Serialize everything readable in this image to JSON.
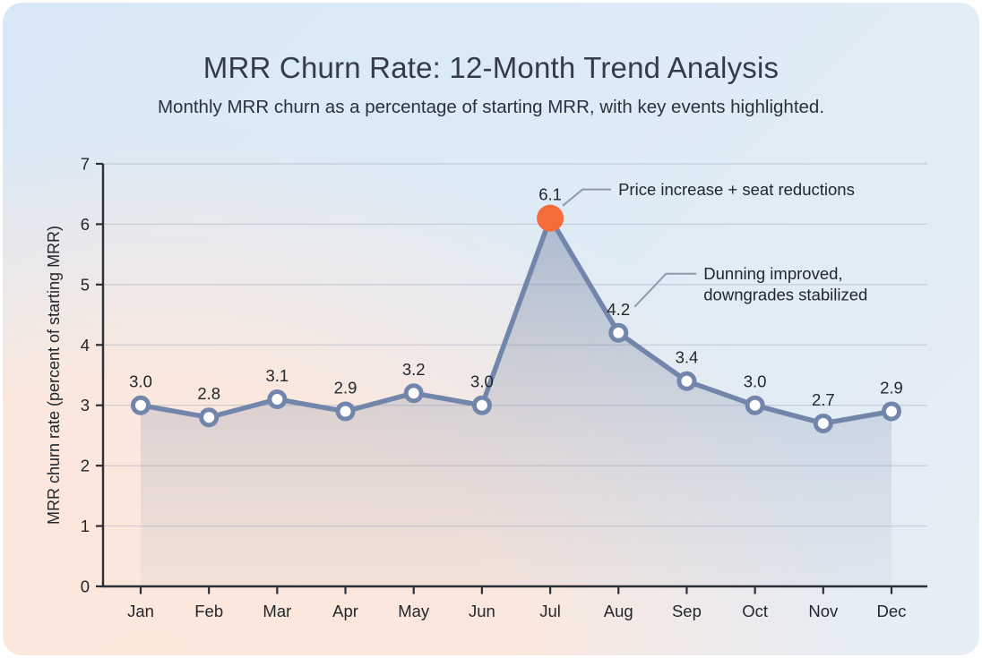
{
  "chart_data": {
    "type": "line",
    "title": "MRR Churn Rate: 12-Month Trend Analysis",
    "subtitle": "Monthly MRR churn as a percentage of starting MRR, with key events highlighted.",
    "xlabel": "",
    "ylabel": "MRR churn rate (percent of starting MRR)",
    "categories": [
      "Jan",
      "Feb",
      "Mar",
      "Apr",
      "May",
      "Jun",
      "Jul",
      "Aug",
      "Sep",
      "Oct",
      "Nov",
      "Dec"
    ],
    "values": [
      3.0,
      2.8,
      3.1,
      2.9,
      3.2,
      3.0,
      6.1,
      4.2,
      3.4,
      3.0,
      2.7,
      2.9
    ],
    "ylim": [
      0,
      7
    ],
    "yticks": [
      0,
      1,
      2,
      3,
      4,
      5,
      6,
      7
    ],
    "grid": "horizontal",
    "legend": "none",
    "area_fill": true,
    "highlight_index": 6,
    "annotations": [
      {
        "label_lines": [
          "Price increase + seat reductions"
        ],
        "point_index": 6,
        "leader": {
          "start_dx": 14,
          "start_dy": -14,
          "elbow_dx": 36,
          "elbow_dy": -32,
          "end_dx": 68
        },
        "text_dx": 76
      },
      {
        "label_lines": [
          "Dunning improved,",
          "downgrades stabilized"
        ],
        "point_index": 7,
        "leader": {
          "start_dx": 18,
          "start_dy": -29,
          "elbow_dx": 53,
          "elbow_dy": -66,
          "end_dx": 87
        },
        "text_dx": 95
      }
    ],
    "colors": {
      "line": "#7285ab",
      "marker_fill": "#ffffff",
      "highlight_dot": "#f46c3a",
      "area_top": "rgba(104,122,156,0.42)",
      "area_bottom": "rgba(160,168,188,0.10)",
      "axis": "#2b2f36",
      "text": "#22272e",
      "grid": "rgba(150,160,178,0.42)",
      "leader": "#8f9aa9"
    }
  }
}
